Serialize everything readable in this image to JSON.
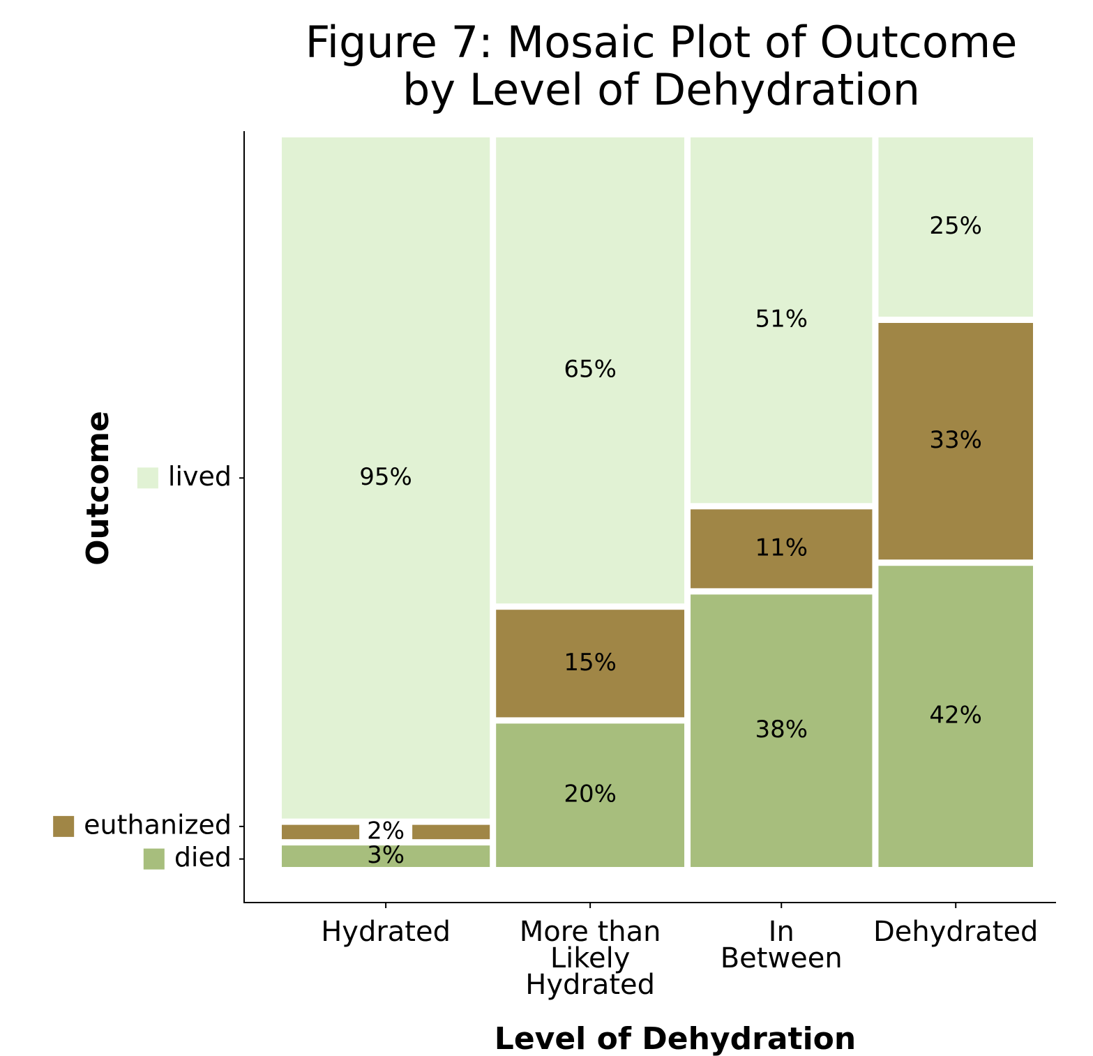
{
  "chart_data": {
    "type": "mosaic",
    "title": "Figure 7: Mosaic Plot of Outcome\nby Level of Dehydration",
    "x_label": "Level of Dehydration",
    "y_label": "Outcome",
    "categories": [
      "Hydrated",
      "More than\nLikely\nHydrated",
      "In\nBetween",
      "Dehydrated"
    ],
    "column_shares": [
      0.284,
      0.257,
      0.248,
      0.211
    ],
    "series": [
      {
        "name": "died",
        "color": "#a7be7d",
        "values": [
          3,
          20,
          38,
          42
        ],
        "value_labels": [
          "3%",
          "20%",
          "38%",
          "42%"
        ]
      },
      {
        "name": "euthanized",
        "color": "#a08646",
        "values": [
          2,
          15,
          11,
          33
        ],
        "value_labels": [
          "2%",
          "15%",
          "11%",
          "33%"
        ]
      },
      {
        "name": "lived",
        "color": "#e1f2d4",
        "values": [
          95,
          65,
          51,
          25
        ],
        "value_labels": [
          "95%",
          "65%",
          "51%",
          "25%"
        ]
      }
    ]
  }
}
